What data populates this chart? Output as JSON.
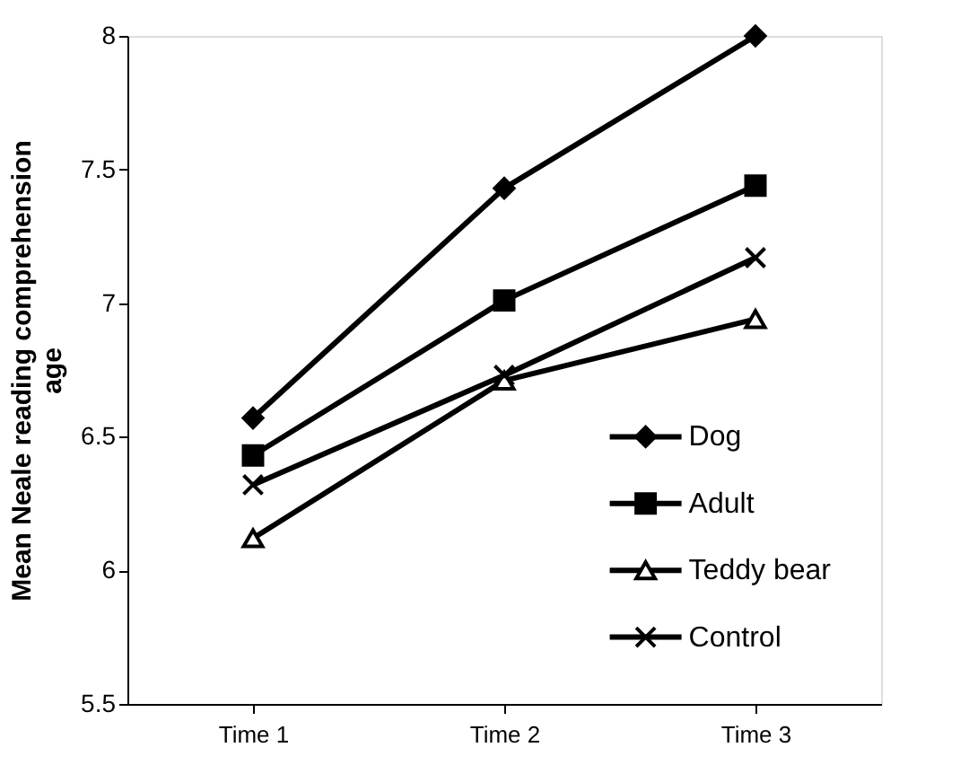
{
  "chart_data": {
    "type": "line",
    "ylabel": "Mean Neale reading comprehension age",
    "categories": [
      "Time 1",
      "Time 2",
      "Time 3"
    ],
    "series": [
      {
        "name": "Dog",
        "color": "#000000",
        "marker": "diamond",
        "values": [
          6.57,
          7.43,
          8.0
        ]
      },
      {
        "name": "Adult",
        "color": "#000000",
        "marker": "square",
        "values": [
          6.43,
          7.01,
          7.44
        ]
      },
      {
        "name": "Teddy bear",
        "color": "#000000",
        "marker": "triangle",
        "values": [
          6.12,
          6.71,
          6.94
        ]
      },
      {
        "name": "Control",
        "color": "#000000",
        "marker": "cross",
        "values": [
          6.32,
          6.73,
          7.17
        ]
      }
    ],
    "ylim": [
      5.5,
      8
    ],
    "yticks": [
      5.5,
      6,
      6.5,
      7,
      7.5,
      8
    ],
    "grid": false,
    "legend": "bottom right",
    "line_style": "solid"
  }
}
